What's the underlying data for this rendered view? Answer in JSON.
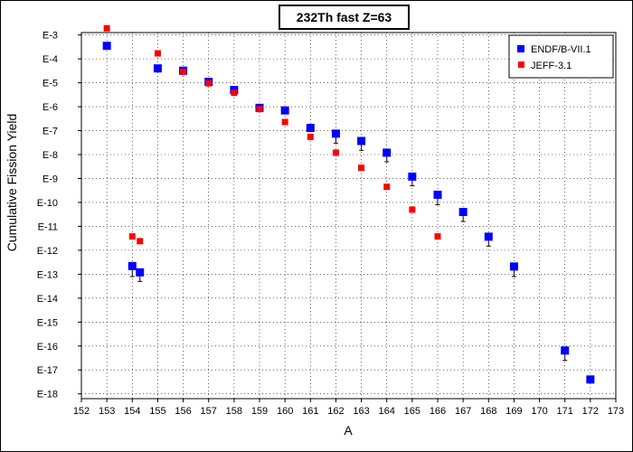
{
  "chart_data": {
    "type": "scatter",
    "title": "232Th fast Z=63",
    "xlabel": "A",
    "ylabel": "Cumulative Fission Yield",
    "xlim": [
      152,
      173
    ],
    "ylim_exponent": [
      -18.2,
      -2.9
    ],
    "y_scale": "log",
    "x_ticks": [
      "152",
      "153",
      "154",
      "155",
      "156",
      "157",
      "158",
      "159",
      "160",
      "161",
      "162",
      "163",
      "164",
      "165",
      "166",
      "167",
      "168",
      "169",
      "170",
      "171",
      "172",
      "173"
    ],
    "y_tick_labels": [
      "E-3",
      "E-4",
      "E-5",
      "E-6",
      "E-7",
      "E-8",
      "E-9",
      "E-10",
      "E-11",
      "E-12",
      "E-13",
      "E-14",
      "E-15",
      "E-16",
      "E-17",
      "E-18"
    ],
    "grid": true,
    "legend_position": "top-right",
    "series": [
      {
        "name": "ENDF/B-VII.1",
        "color": "#0000ff",
        "marker": "square",
        "points": [
          {
            "x": 153,
            "y": "3.5E-4"
          },
          {
            "x": 154,
            "y": "2.2E-13",
            "err_low": "8E-14"
          },
          {
            "x": 154.3,
            "y": "1.2E-13",
            "err_low": "5E-14"
          },
          {
            "x": 155,
            "y": "4.0E-5"
          },
          {
            "x": 156,
            "y": "3.2E-5"
          },
          {
            "x": 157,
            "y": "1.1E-5"
          },
          {
            "x": 158,
            "y": "5.0E-6"
          },
          {
            "x": 159,
            "y": "9.0E-7"
          },
          {
            "x": 160,
            "y": "7.0E-7"
          },
          {
            "x": 161,
            "y": "1.3E-7"
          },
          {
            "x": 162,
            "y": "7.5E-8",
            "err_low": "3E-8"
          },
          {
            "x": 163,
            "y": "3.7E-8",
            "err_low": "1.5E-8"
          },
          {
            "x": 164,
            "y": "1.2E-8",
            "err_low": "5E-9"
          },
          {
            "x": 165,
            "y": "1.2E-9",
            "err_low": "5E-10"
          },
          {
            "x": 166,
            "y": "2.1E-10",
            "err_low": "8E-11"
          },
          {
            "x": 167,
            "y": "4.0E-11",
            "err_low": "1.6E-11"
          },
          {
            "x": 168,
            "y": "3.7E-12",
            "err_low": "1.5E-12"
          },
          {
            "x": 169,
            "y": "2.1E-13",
            "err_low": "8E-14"
          },
          {
            "x": 171,
            "y": "6.5E-17",
            "err_low": "2.5E-17"
          },
          {
            "x": 172,
            "y": "4.0E-18"
          }
        ]
      },
      {
        "name": "JEFF-3.1",
        "color": "#ff0000",
        "marker": "square",
        "points": [
          {
            "x": 153,
            "y": "1.9E-3"
          },
          {
            "x": 154,
            "y": "3.8E-12"
          },
          {
            "x": 154.3,
            "y": "2.4E-12"
          },
          {
            "x": 155,
            "y": "1.7E-4"
          },
          {
            "x": 156,
            "y": "2.9E-5"
          },
          {
            "x": 157,
            "y": "9.5E-6"
          },
          {
            "x": 158,
            "y": "3.8E-6"
          },
          {
            "x": 159,
            "y": "8.0E-7"
          },
          {
            "x": 160,
            "y": "2.3E-7"
          },
          {
            "x": 161,
            "y": "5.5E-8"
          },
          {
            "x": 162,
            "y": "1.2E-8"
          },
          {
            "x": 163,
            "y": "2.8E-9"
          },
          {
            "x": 164,
            "y": "4.5E-10"
          },
          {
            "x": 165,
            "y": "5.0E-11"
          },
          {
            "x": 166,
            "y": "3.8E-12"
          }
        ]
      }
    ]
  }
}
